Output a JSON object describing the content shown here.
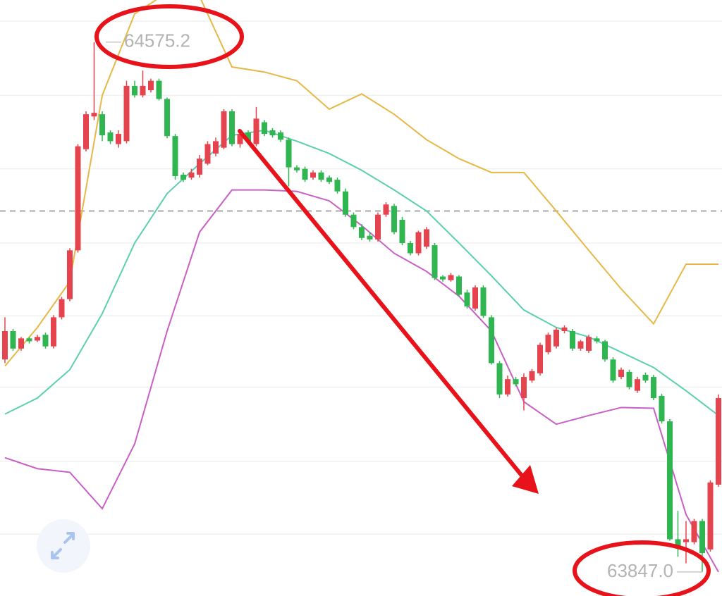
{
  "chart_data": {
    "type": "candlestick",
    "ylim": [
      63814,
      64633
    ],
    "gridlines": [
      64604,
      64502,
      64401,
      64299,
      64199,
      64101,
      63999,
      63899
    ],
    "price_line": 64343,
    "up_color": "#e5444e",
    "down_color": "#2fb650",
    "candles": {
      "open": [
        64139,
        64178,
        64154,
        64168,
        64165,
        64173,
        64157,
        64197,
        64222,
        64289,
        64428,
        64473,
        64476,
        64451,
        64435,
        64439,
        64515,
        64502,
        64509,
        64522,
        64497,
        64446,
        64393,
        64389,
        64393,
        64408,
        64422,
        64430,
        64480,
        64435,
        64451,
        64435,
        64465,
        64454,
        64451,
        64441,
        64403,
        64401,
        64389,
        64396,
        64389,
        64386,
        64370,
        64338,
        64321,
        64309,
        64304,
        64338,
        64350,
        64331,
        64299,
        64285,
        64294,
        64296,
        64253,
        64248,
        64253,
        64231,
        64209,
        64238,
        64197,
        64134,
        64091,
        64112,
        64086,
        64110,
        64120,
        64149,
        64157,
        64178,
        64178,
        64154,
        64151,
        64168,
        64164,
        64139,
        64115,
        64122,
        64096,
        64118,
        64115,
        64089,
        64054,
        63892,
        63888,
        63888,
        63917,
        63878,
        63967
      ],
      "high": [
        64197,
        64181,
        64170,
        64170,
        64173,
        64176,
        64200,
        64225,
        64292,
        64435,
        64480,
        64575.2,
        64480,
        64454,
        64454,
        64522,
        64522,
        64536,
        64525,
        64525,
        64499,
        64449,
        64396,
        64401,
        64420,
        64439,
        64444,
        64483,
        64483,
        64454,
        64454,
        64486,
        64468,
        64457,
        64454,
        64444,
        64406,
        64404,
        64399,
        64399,
        64392,
        64389,
        64374,
        64341,
        64325,
        64314,
        64341,
        64355,
        64353,
        64335,
        64302,
        64316,
        64321,
        64299,
        64255,
        64258,
        64255,
        64235,
        64241,
        64241,
        64200,
        64137,
        64117,
        64115,
        64120,
        64126,
        64162,
        64176,
        64183,
        64186,
        64181,
        64166,
        64173,
        64171,
        64166,
        64142,
        64128,
        64125,
        64115,
        64121,
        64118,
        64092,
        64057,
        63931,
        63917,
        63920,
        63920,
        63973,
        64091
      ],
      "low": [
        64134,
        64151,
        64151,
        64161,
        64163,
        64154,
        64154,
        64194,
        64219,
        64286,
        64425,
        64468,
        64439,
        64435,
        64430,
        64436,
        64499,
        64499,
        64506,
        64495,
        64443,
        64386,
        64383,
        64386,
        64389,
        64406,
        64418,
        64428,
        64432,
        64430,
        64436,
        64432,
        64446,
        64444,
        64438,
        64377,
        64396,
        64383,
        64386,
        64383,
        64380,
        64367,
        64335,
        64318,
        64303,
        64301,
        64301,
        64335,
        64311,
        64296,
        64282,
        64282,
        64291,
        64248,
        64246,
        64246,
        64225,
        64209,
        64206,
        64196,
        64132,
        64086,
        64088,
        64102,
        64069,
        64107,
        64117,
        64146,
        64154,
        64175,
        64151,
        64151,
        64148,
        64161,
        64136,
        64107,
        64112,
        64098,
        64093,
        64107,
        64083,
        64051,
        63890,
        63868,
        63859,
        63885,
        63847.0,
        63875,
        63964
      ],
      "close": [
        64178,
        64154,
        64168,
        64164,
        64170,
        64157,
        64197,
        64222,
        64289,
        64432,
        64476,
        64478,
        64447,
        64439,
        64449,
        64515,
        64502,
        64515,
        64522,
        64497,
        64446,
        64391,
        64386,
        64396,
        64415,
        64435,
        64439,
        64480,
        64435,
        64449,
        64439,
        64470,
        64449,
        64447,
        64441,
        64403,
        64399,
        64386,
        64396,
        64386,
        64383,
        64370,
        64338,
        64321,
        64306,
        64304,
        64338,
        64352,
        64314,
        64299,
        64285,
        64314,
        64318,
        64251,
        64249,
        64255,
        64228,
        64212,
        64238,
        64199,
        64134,
        64091,
        64112,
        64105,
        64115,
        64123,
        64159,
        64173,
        64180,
        64183,
        64154,
        64164,
        64170,
        64164,
        64139,
        64110,
        64125,
        64101,
        64112,
        64110,
        64086,
        64054,
        63892,
        63883,
        63892,
        63917,
        63873,
        63970,
        64086
      ]
    },
    "bands": [
      {
        "color": "#e6b847",
        "values": [
          64130,
          64183,
          64246,
          64502,
          64614,
          64643,
          64638,
          64541,
          64534,
          64522,
          64483,
          64504,
          64476,
          64441,
          64415,
          64396,
          64396,
          64343,
          64289,
          64236,
          64188,
          64270,
          64270
        ]
      },
      {
        "color": "#5ccfae",
        "values": [
          64064,
          64086,
          64125,
          64202,
          64299,
          64367,
          64408,
          64447,
          64454,
          64439,
          64422,
          64399,
          64372,
          64343,
          64299,
          64254,
          64207,
          64183,
          64170,
          64149,
          64128,
          64096,
          64062
        ]
      },
      {
        "color": "#c95fc6",
        "values": [
          64004,
          63989,
          63984,
          63934,
          64023,
          64178,
          64314,
          64372,
          64372,
          64370,
          64357,
          64323,
          64285,
          64260,
          64226,
          64178,
          64081,
          64050,
          64062,
          64073,
          64072,
          63926,
          63847
        ]
      }
    ],
    "high_label": {
      "value": 64575.2,
      "label": "64575.2"
    },
    "low_label": {
      "value": 63847,
      "label": "63847.0"
    }
  }
}
